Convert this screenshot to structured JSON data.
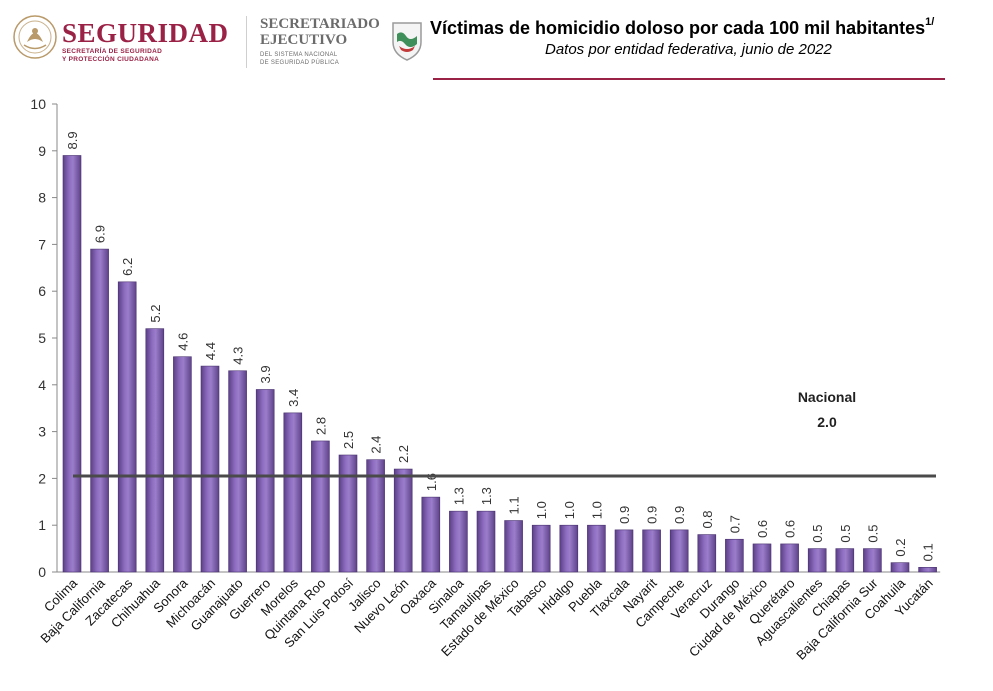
{
  "header": {
    "seguridad_name": "SEGURIDAD",
    "seguridad_sub1": "SECRETARÍA DE SEGURIDAD",
    "seguridad_sub2": "Y PROTECCIÓN CIUDADANA",
    "secretariado_line1": "SECRETARIADO",
    "secretariado_line2": "EJECUTIVO",
    "secretariado_sub1": "DEL SISTEMA NACIONAL",
    "secretariado_sub2": "DE SEGURIDAD PÚBLICA",
    "accent_color": "#9b2247"
  },
  "chart_data": {
    "type": "bar",
    "title": "Víctimas de homicidio doloso por cada 100 mil habitantes",
    "title_superscript": "1/",
    "subtitle": "Datos por entidad federativa, junio de 2022",
    "categories": [
      "Colima",
      "Baja California",
      "Zacatecas",
      "Chihuahua",
      "Sonora",
      "Michoacán",
      "Guanajuato",
      "Guerrero",
      "Morelos",
      "Quintana Roo",
      "San Luis Potosí",
      "Jalisco",
      "Nuevo León",
      "Oaxaca",
      "Sinaloa",
      "Tamaulipas",
      "Estado de México",
      "Tabasco",
      "Hidalgo",
      "Puebla",
      "Tlaxcala",
      "Nayarit",
      "Campeche",
      "Veracruz",
      "Durango",
      "Ciudad de México",
      "Querétaro",
      "Aguascalientes",
      "Chiapas",
      "Baja California Sur",
      "Coahuila",
      "Yucatán"
    ],
    "values": [
      8.9,
      6.9,
      6.2,
      5.2,
      4.6,
      4.4,
      4.3,
      3.9,
      3.4,
      2.8,
      2.5,
      2.4,
      2.2,
      1.6,
      1.3,
      1.3,
      1.1,
      1.0,
      1.0,
      1.0,
      0.9,
      0.9,
      0.9,
      0.8,
      0.7,
      0.6,
      0.6,
      0.5,
      0.5,
      0.5,
      0.2,
      0.1
    ],
    "value_labels": [
      "8.9",
      "6.9",
      "6.2",
      "5.2",
      "4.6",
      "4.4",
      "4.3",
      "3.9",
      "3.4",
      "2.8",
      "2.5",
      "2.4",
      "2.2",
      "1.6",
      "1.3",
      "1.3",
      "1.1",
      "1.0",
      "1.0",
      "1.0",
      "0.9",
      "0.9",
      "0.9",
      "0.8",
      "0.7",
      "0.6",
      "0.6",
      "0.5",
      "0.5",
      "0.5",
      "0.2",
      "0.1"
    ],
    "ylim": [
      0,
      10
    ],
    "yticks": [
      "0",
      "1",
      "2",
      "3",
      "4",
      "5",
      "6",
      "7",
      "8",
      "9",
      "10"
    ],
    "reference_line": {
      "label": "Nacional",
      "value_label": "2.0",
      "value": 2.05
    },
    "bar_color": "#7c5aa6",
    "grid": false
  }
}
